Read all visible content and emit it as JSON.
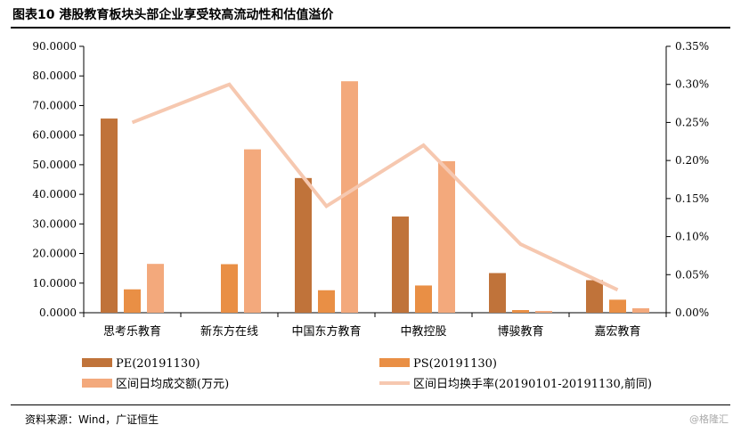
{
  "page": {
    "title": "图表10 港股教育板块头部企业享受较高流动性和估值溢价",
    "source": "资料来源：Wind，广证恒生",
    "watermark": "@格隆汇"
  },
  "chart_data": {
    "type": "bar",
    "categories": [
      "思考乐教育",
      "新东方在线",
      "中国东方教育",
      "中教控股",
      "博骏教育",
      "嘉宏教育"
    ],
    "series": [
      {
        "name": "PE(20191130)",
        "type": "bar",
        "axis": "left",
        "color": "#C0733A",
        "values": [
          65.6,
          null,
          45.5,
          32.5,
          13.4,
          11.0
        ]
      },
      {
        "name": "PS(20191130)",
        "type": "bar",
        "axis": "left",
        "color": "#E98F45",
        "values": [
          7.9,
          16.4,
          7.6,
          9.2,
          0.9,
          4.4
        ]
      },
      {
        "name": "区间日均成交额(万元)",
        "type": "bar",
        "axis": "left",
        "color": "#F3A97C",
        "values": [
          16.5,
          55.2,
          78.2,
          51.2,
          0.6,
          1.5
        ]
      },
      {
        "name": "区间日均换手率(20190101-20191130,前同)",
        "type": "line",
        "axis": "right",
        "color": "#F6C8B0",
        "values": [
          0.25,
          0.3,
          0.14,
          0.22,
          0.09,
          0.03
        ]
      }
    ],
    "y_left": {
      "min": 0,
      "max": 90,
      "step": 10,
      "ticks": [
        "0.0000",
        "10.0000",
        "20.0000",
        "30.0000",
        "40.0000",
        "50.0000",
        "60.0000",
        "70.0000",
        "80.0000",
        "90.0000"
      ]
    },
    "y_right": {
      "min": 0,
      "max": 0.35,
      "step": 0.05,
      "ticks": [
        "0.00%",
        "0.05%",
        "0.10%",
        "0.15%",
        "0.20%",
        "0.25%",
        "0.30%",
        "0.35%"
      ]
    },
    "grid": false,
    "legend_position": "bottom"
  }
}
